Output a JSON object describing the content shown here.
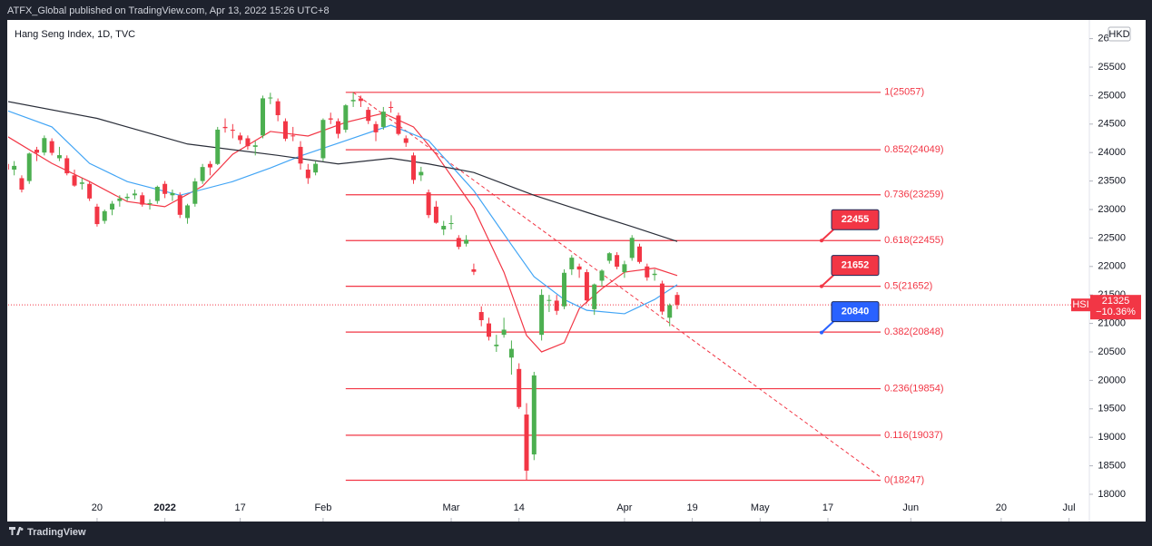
{
  "header": {
    "text": "ATFX_Global published on TradingView.com, Apr 13, 2022 15:26 UTC+8"
  },
  "footer": {
    "brand": "TradingView"
  },
  "chart_data": {
    "type": "candlestick",
    "title": "Hang Seng Index, 1D, TVC",
    "currency": "HKD",
    "symbol": "HSI",
    "up_color": "#4caf50",
    "down_color": "#f23645",
    "open": [
      23800,
      23700,
      23550,
      23500,
      24050,
      24000,
      24200,
      23900,
      23900,
      23600,
      23450,
      23450,
      23050,
      22800,
      23000,
      23150,
      23200,
      23250,
      23250,
      23100,
      23150,
      23450,
      23250,
      23250,
      22850,
      23100,
      23500,
      23800,
      23800,
      24450,
      24400,
      24300,
      24250,
      24100,
      24300,
      24950,
      24900,
      24550,
      24300,
      24100,
      23700,
      23650,
      23900,
      24600,
      24550,
      24400,
      24900,
      24950,
      24750,
      24500,
      24450,
      24800,
      24650,
      24250,
      23950,
      23600,
      23300,
      23050,
      22650,
      22750,
      22500,
      22400,
      21950,
      21200,
      21000,
      20600,
      20800,
      20400,
      20200,
      19400,
      18700,
      20800,
      21400,
      21400,
      21300,
      21950,
      22000,
      21900,
      21250,
      21750,
      22100,
      22200,
      21900,
      22150,
      22350,
      22000,
      21850,
      21700,
      21100,
      21500
    ],
    "high": [
      23950,
      23850,
      23600,
      24000,
      24100,
      24300,
      24250,
      24100,
      23950,
      23700,
      23550,
      23500,
      23100,
      23000,
      23150,
      23250,
      23280,
      23350,
      23300,
      23180,
      23420,
      23500,
      23350,
      23300,
      23100,
      23550,
      23800,
      23850,
      24450,
      24600,
      24500,
      24350,
      24300,
      24200,
      25000,
      25050,
      24950,
      24600,
      24450,
      24200,
      23800,
      23850,
      24600,
      24700,
      24600,
      24850,
      25057,
      25000,
      24800,
      24550,
      24800,
      24900,
      24700,
      24300,
      24000,
      23750,
      23350,
      23150,
      22800,
      22900,
      22550,
      22550,
      22050,
      21300,
      21100,
      20800,
      21100,
      20700,
      20300,
      19600,
      20150,
      21600,
      21500,
      21500,
      21950,
      22200,
      22050,
      21950,
      21700,
      21950,
      22250,
      22250,
      22100,
      22550,
      22400,
      22050,
      21950,
      21750,
      21350,
      21550
    ],
    "low": [
      23650,
      23600,
      23300,
      23450,
      23850,
      23950,
      23950,
      23850,
      23600,
      23400,
      23350,
      23150,
      22700,
      22750,
      22900,
      23050,
      23150,
      23180,
      23050,
      23000,
      23100,
      23200,
      23150,
      22850,
      22750,
      23050,
      23450,
      23600,
      23780,
      24350,
      24250,
      24150,
      24050,
      23950,
      24250,
      24850,
      24550,
      24200,
      24200,
      23700,
      23450,
      23600,
      23850,
      24500,
      24250,
      24350,
      24800,
      24800,
      24500,
      24200,
      24400,
      24700,
      24300,
      24100,
      23450,
      23500,
      22850,
      22750,
      22550,
      22650,
      22300,
      22350,
      21850,
      20950,
      20700,
      20500,
      20750,
      20100,
      19500,
      18247,
      18600,
      20700,
      21200,
      21150,
      21250,
      21850,
      21800,
      21350,
      21150,
      21650,
      22050,
      21950,
      21800,
      22100,
      22050,
      21750,
      21750,
      21150,
      20950,
      21250
    ],
    "close": [
      23700,
      23766,
      23349,
      23983,
      23996,
      24254,
      23995,
      23954,
      23635,
      23420,
      23475,
      23193,
      22744,
      22971,
      23102,
      23193,
      23223,
      23280,
      23086,
      23112,
      23398,
      23274,
      23289,
      22907,
      23072,
      23493,
      23746,
      23739,
      24402,
      24429,
      24383,
      24219,
      24112,
      24127,
      24952,
      24966,
      24656,
      24243,
      24289,
      23807,
      23550,
      23802,
      24573,
      24579,
      24329,
      24829,
      24924,
      24906,
      24556,
      24355,
      24718,
      24792,
      24327,
      24170,
      23520,
      23660,
      22902,
      22767,
      22713,
      22761,
      22344,
      22468,
      21906,
      21057,
      20765,
      20627,
      20890,
      20554,
      19532,
      18415,
      20087,
      21501,
      21412,
      21221,
      21889,
      22154,
      21946,
      21404,
      21684,
      21927,
      22232,
      21996,
      22039,
      22502,
      22080,
      21808,
      21872,
      21208,
      21320,
      21325
    ],
    "moving_averages": [
      {
        "color": "#f23645",
        "x": [
          0,
          6,
          11,
          16,
          21,
          26,
          30,
          35,
          40,
          45,
          50,
          54,
          57,
          62,
          66,
          69,
          71,
          74,
          76,
          79,
          82,
          86,
          89
        ],
        "values": [
          24290,
          23810,
          23490,
          23140,
          23050,
          23410,
          23970,
          24370,
          24290,
          24530,
          24690,
          24450,
          23970,
          23020,
          21900,
          20790,
          20500,
          20660,
          21260,
          21610,
          21900,
          21970,
          21840
        ]
      },
      {
        "color": "#42a5f5",
        "x": [
          0,
          6,
          11,
          16,
          23,
          30,
          35,
          39,
          45,
          51,
          56,
          62,
          67,
          70,
          74,
          77,
          82,
          86,
          89
        ],
        "values": [
          24740,
          24450,
          23810,
          23490,
          23250,
          23490,
          23730,
          23940,
          24210,
          24480,
          24210,
          23330,
          22380,
          21820,
          21420,
          21230,
          21170,
          21420,
          21680
        ]
      },
      {
        "color": "#2a2e39",
        "x": [
          0,
          12,
          24,
          36,
          44,
          51,
          56,
          62,
          70,
          77,
          83,
          89
        ],
        "values": [
          24900,
          24600,
          24150,
          23950,
          23800,
          23900,
          23800,
          23650,
          23250,
          22950,
          22700,
          22440
        ]
      }
    ],
    "trendline": {
      "color": "#f23645",
      "x": [
        46,
        116
      ],
      "values": [
        25057,
        18300
      ]
    },
    "fib": {
      "color": "#f23645",
      "x": [
        45,
        116
      ],
      "levels": [
        {
          "value": 25057,
          "label": "1(25057)"
        },
        {
          "value": 24049,
          "label": "0.852(24049)"
        },
        {
          "value": 23259,
          "label": "0.736(23259)"
        },
        {
          "value": 22455,
          "label": "0.618(22455)"
        },
        {
          "value": 21652,
          "label": "0.5(21652)"
        },
        {
          "value": 20848,
          "label": "0.382(20848)"
        },
        {
          "value": 19854,
          "label": "0.236(19854)"
        },
        {
          "value": 19037,
          "label": "0.116(19037)"
        },
        {
          "value": 18247,
          "label": "0(18247)"
        }
      ]
    },
    "callouts": [
      {
        "value": 22455,
        "color": "#f23645"
      },
      {
        "value": 21652,
        "color": "#f23645"
      },
      {
        "value": 20840,
        "color": "#2962ff"
      }
    ],
    "last": {
      "value": 21325,
      "color": "#f23645",
      "change": {
        "value": -10.36,
        "label": "−10.36%"
      }
    },
    "xlim": [
      0.2,
      143.7
    ],
    "xticks": [
      {
        "value": 12,
        "label": "20"
      },
      {
        "value": 21,
        "label": "2022"
      },
      {
        "value": 31,
        "label": "17"
      },
      {
        "value": 42,
        "label": "Feb"
      },
      {
        "value": 59,
        "label": "Mar"
      },
      {
        "value": 68,
        "label": "14"
      },
      {
        "value": 82,
        "label": "Apr"
      },
      {
        "value": 91,
        "label": "19"
      },
      {
        "value": 100,
        "label": "May"
      },
      {
        "value": 109,
        "label": "17"
      },
      {
        "value": 120,
        "label": "Jun"
      },
      {
        "value": 132,
        "label": "20"
      },
      {
        "value": 141,
        "label": "Jul"
      }
    ],
    "ylim": [
      17522,
      26328
    ],
    "yticks": [
      18000,
      18500,
      19000,
      19500,
      20000,
      20500,
      21000,
      21500,
      22000,
      22500,
      23000,
      23500,
      24000,
      24500,
      25000,
      25500,
      26000
    ]
  }
}
